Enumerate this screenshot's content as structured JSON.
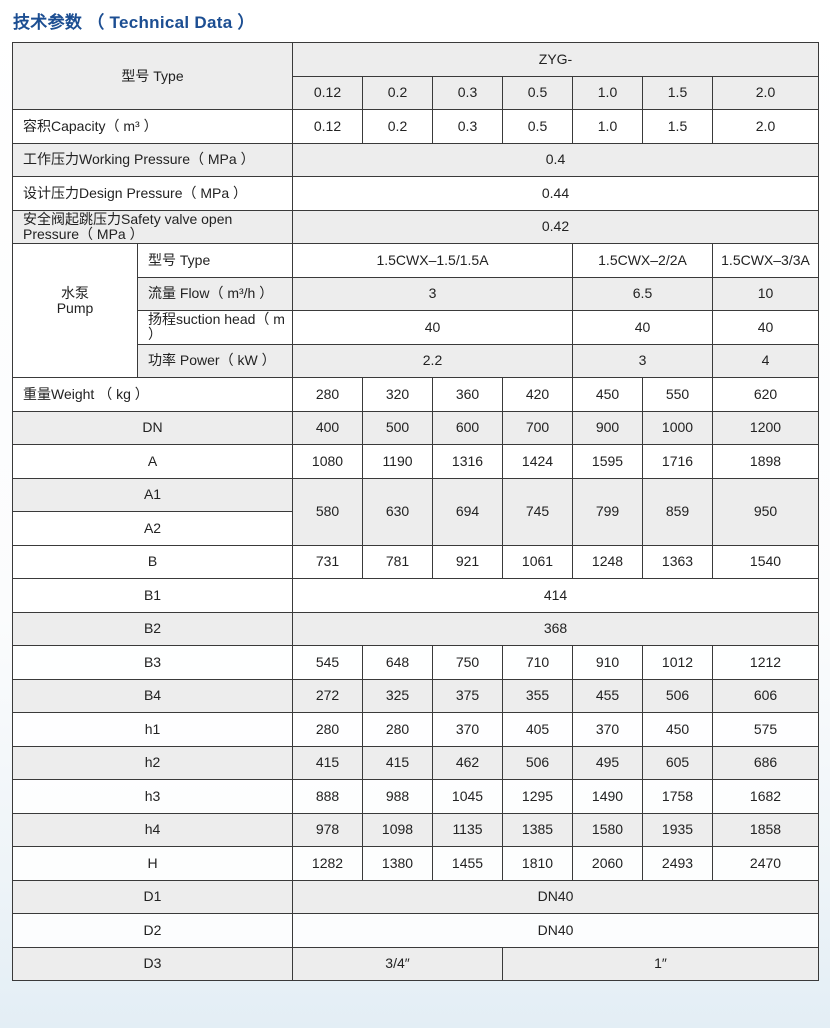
{
  "title": "技术参数 （ Technical Data ）",
  "header": {
    "type_label": "型号 Type",
    "series": "ZYG-",
    "models": [
      "0.12",
      "0.2",
      "0.3",
      "0.5",
      "1.0",
      "1.5",
      "2.0"
    ]
  },
  "rows_top": [
    {
      "label": "容积Capacity（ m³ ）",
      "values": [
        "0.12",
        "0.2",
        "0.3",
        "0.5",
        "1.0",
        "1.5",
        "2.0"
      ]
    },
    {
      "label": "工作压力Working Pressure（ MPa ）",
      "values": [
        "0.4"
      ]
    },
    {
      "label": "设计压力Design Pressure（ MPa ）",
      "values": [
        "0.44"
      ]
    },
    {
      "label": "安全阀起跳压力Safety valve open Pressure（ MPa ）",
      "values": [
        "0.42"
      ]
    }
  ],
  "pump": {
    "label_cn": "水泵",
    "label_en": "Pump",
    "rows": [
      {
        "label": "型号 Type",
        "values": [
          "1.5CWX–1.5/1.5A",
          "1.5CWX–2/2A",
          "1.5CWX–3/3A"
        ]
      },
      {
        "label": "流量 Flow（ m³/h ）",
        "values": [
          "3",
          "6.5",
          "10"
        ]
      },
      {
        "label": "扬程suction head（ m ）",
        "values": [
          "40",
          "40",
          "40"
        ]
      },
      {
        "label": "功率 Power（ kW ）",
        "values": [
          "2.2",
          "3",
          "4"
        ]
      }
    ]
  },
  "weight": {
    "label": "重量Weight  （ kg ）",
    "values": [
      "280",
      "320",
      "360",
      "420",
      "450",
      "550",
      "620"
    ]
  },
  "dims": [
    {
      "label": "DN",
      "values": [
        "400",
        "500",
        "600",
        "700",
        "900",
        "1000",
        "1200"
      ]
    },
    {
      "label": "A",
      "values": [
        "1080",
        "1190",
        "1316",
        "1424",
        "1595",
        "1716",
        "1898"
      ]
    },
    {
      "label": "A1",
      "values": [
        "580",
        "630",
        "694",
        "745",
        "799",
        "859",
        "950"
      ]
    },
    {
      "label": "A2",
      "values": []
    },
    {
      "label": "B",
      "values": [
        "731",
        "781",
        "921",
        "1061",
        "1248",
        "1363",
        "1540"
      ]
    },
    {
      "label": "B1",
      "values": [
        "414"
      ]
    },
    {
      "label": "B2",
      "values": [
        "368"
      ]
    },
    {
      "label": "B3",
      "values": [
        "545",
        "648",
        "750",
        "710",
        "910",
        "1012",
        "1212"
      ]
    },
    {
      "label": "B4",
      "values": [
        "272",
        "325",
        "375",
        "355",
        "455",
        "506",
        "606"
      ]
    },
    {
      "label": "h1",
      "values": [
        "280",
        "280",
        "370",
        "405",
        "370",
        "450",
        "575"
      ]
    },
    {
      "label": "h2",
      "values": [
        "415",
        "415",
        "462",
        "506",
        "495",
        "605",
        "686"
      ]
    },
    {
      "label": "h3",
      "values": [
        "888",
        "988",
        "1045",
        "1295",
        "1490",
        "1758",
        "1682"
      ]
    },
    {
      "label": "h4",
      "values": [
        "978",
        "1098",
        "1135",
        "1385",
        "1580",
        "1935",
        "1858"
      ]
    },
    {
      "label": "H",
      "values": [
        "1282",
        "1380",
        "1455",
        "1810",
        "2060",
        "2493",
        "2470"
      ]
    },
    {
      "label": "D1",
      "values": [
        "DN40"
      ]
    },
    {
      "label": "D2",
      "values": [
        "DN40"
      ]
    },
    {
      "label": "D3",
      "values": [
        "3/4″",
        "1″"
      ]
    }
  ]
}
